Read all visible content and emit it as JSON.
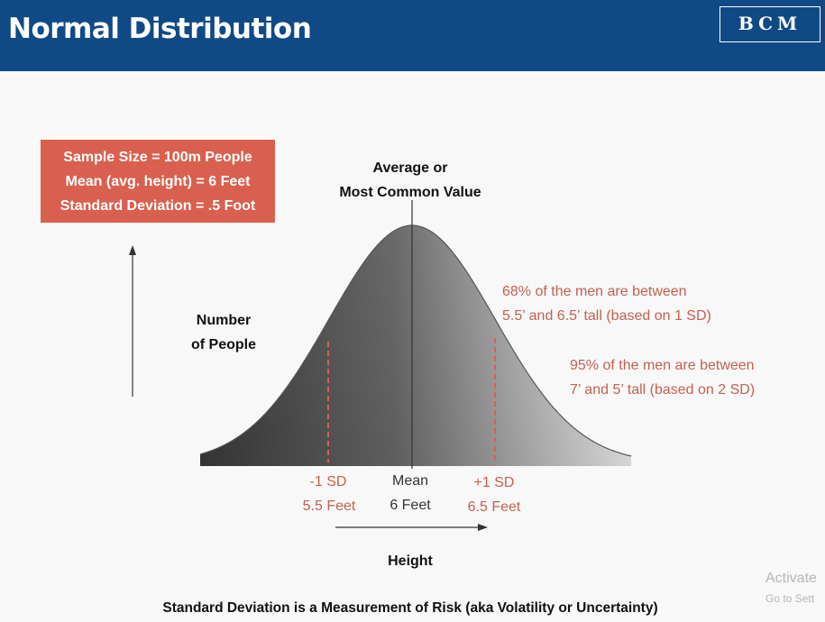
{
  "header": {
    "title": "Normal Distribution",
    "logo_text": "BCM"
  },
  "info_box": {
    "lines": [
      "Sample Size = 100m People",
      "Mean (avg. height) = 6 Feet",
      "Standard Deviation = .5 Foot"
    ]
  },
  "labels": {
    "peak_line1": "Average or",
    "peak_line2": "Most Common Value",
    "y_axis_line1": "Number",
    "y_axis_line2": "of People",
    "one_sd_line1": "68% of the men are between",
    "one_sd_line2": "5.5’ and 6.5’ tall  (based on 1 SD)",
    "two_sd_line1": "95% of the men are between",
    "two_sd_line2": "7’ and 5’ tall (based on 2 SD)",
    "minus_sd": "-1 SD",
    "minus_sd_value": "5.5 Feet",
    "mean": "Mean",
    "mean_value": "6 Feet",
    "plus_sd": "+1 SD",
    "plus_sd_value": "6.5 Feet",
    "x_axis": "Height",
    "footer": "Standard Deviation is a Measurement of Risk (aka Volatility or Uncertainty)"
  },
  "watermark": {
    "line1": "Activate",
    "line2": "Go to Sett"
  },
  "colors": {
    "header_bg": "#104a86",
    "accent_red": "#d9604f",
    "annotation_red": "#c4604f"
  }
}
